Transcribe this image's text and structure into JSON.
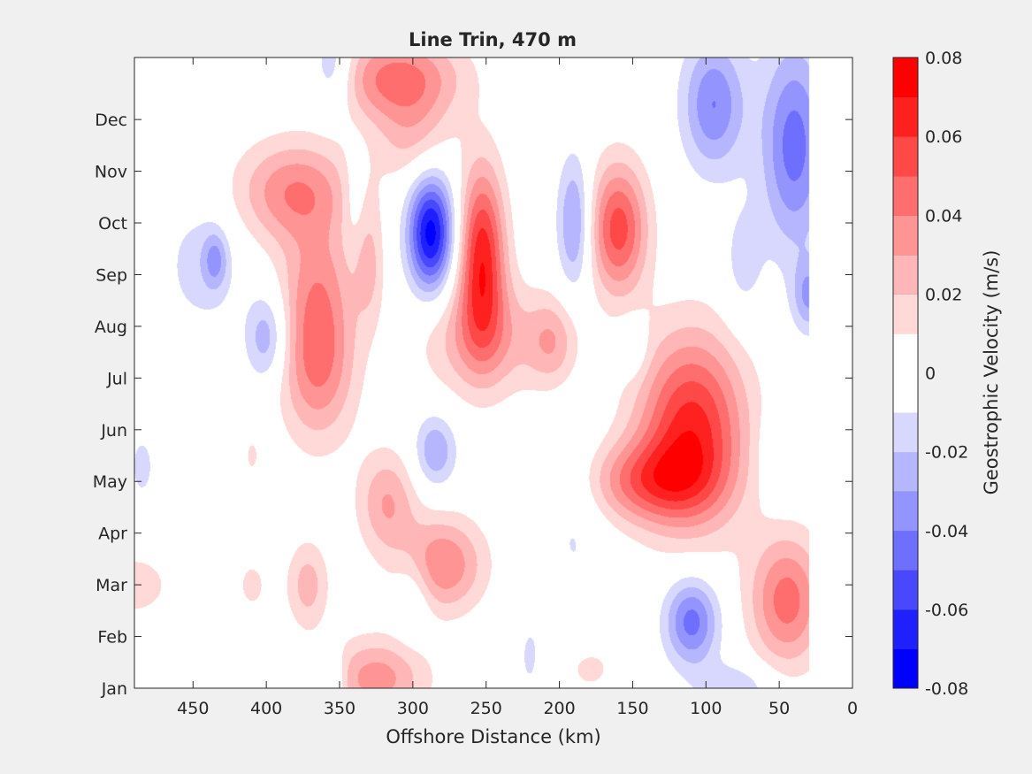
{
  "chart_data": {
    "type": "contour",
    "title": "Line Trin, 470 m",
    "xlabel": "Offshore Distance (km)",
    "ylabel": "",
    "xlim": [
      490,
      0
    ],
    "x_reversed": true,
    "ylim_months": [
      1,
      13.2
    ],
    "x_ticks": [
      450,
      400,
      350,
      300,
      250,
      200,
      150,
      100,
      50,
      0
    ],
    "y_ticks": [
      {
        "value": 1,
        "label": "Jan"
      },
      {
        "value": 2,
        "label": "Feb"
      },
      {
        "value": 3,
        "label": "Mar"
      },
      {
        "value": 4,
        "label": "Apr"
      },
      {
        "value": 5,
        "label": "May"
      },
      {
        "value": 6,
        "label": "Jun"
      },
      {
        "value": 7,
        "label": "Jul"
      },
      {
        "value": 8,
        "label": "Aug"
      },
      {
        "value": 9,
        "label": "Sep"
      },
      {
        "value": 10,
        "label": "Oct"
      },
      {
        "value": 11,
        "label": "Nov"
      },
      {
        "value": 12,
        "label": "Dec"
      }
    ],
    "colorbar": {
      "label": "Geostrophic Velocity (m/s)",
      "range": [
        -0.08,
        0.08
      ],
      "ticks": [
        0.08,
        0.06,
        0.04,
        0.02,
        0,
        -0.02,
        -0.04,
        -0.06,
        -0.08
      ],
      "tick_labels": [
        "0.08",
        "0.06",
        "0.04",
        "0.02",
        "0",
        "-0.02",
        "-0.04",
        "-0.06",
        "-0.08"
      ],
      "levels": [
        -0.08,
        -0.07,
        -0.06,
        -0.05,
        -0.04,
        -0.03,
        -0.02,
        -0.01,
        0,
        0.01,
        0.02,
        0.03,
        0.04,
        0.05,
        0.06,
        0.07,
        0.08
      ],
      "colors": [
        "#0000ff",
        "#2020ff",
        "#4848ff",
        "#6e6eff",
        "#9494ff",
        "#b6b6ff",
        "#d8d8ff",
        "#ffffff",
        "#ffffff",
        "#ffd8d8",
        "#ffb6b6",
        "#ff9494",
        "#ff6e6e",
        "#ff4848",
        "#ff2020",
        "#ff0000"
      ]
    },
    "features": [
      {
        "x": 253,
        "y": 9.4,
        "value": 0.065,
        "sx": 11,
        "sy": 1.2
      },
      {
        "x": 253,
        "y": 7.8,
        "value": 0.03,
        "sx": 28,
        "sy": 0.8
      },
      {
        "x": 288,
        "y": 9.8,
        "value": -0.075,
        "sx": 11,
        "sy": 0.8
      },
      {
        "x": 160,
        "y": 9.9,
        "value": 0.055,
        "sx": 14,
        "sy": 0.9
      },
      {
        "x": 190,
        "y": 10.0,
        "value": -0.035,
        "sx": 8,
        "sy": 0.9
      },
      {
        "x": 110,
        "y": 6.0,
        "value": 0.065,
        "sx": 26,
        "sy": 1.3
      },
      {
        "x": 140,
        "y": 5.0,
        "value": 0.04,
        "sx": 30,
        "sy": 0.55
      },
      {
        "x": 380,
        "y": 10.6,
        "value": 0.04,
        "sx": 28,
        "sy": 0.7
      },
      {
        "x": 365,
        "y": 7.4,
        "value": 0.045,
        "sx": 18,
        "sy": 1.1
      },
      {
        "x": 365,
        "y": 9.0,
        "value": 0.02,
        "sx": 18,
        "sy": 0.8
      },
      {
        "x": 310,
        "y": 12.8,
        "value": 0.045,
        "sx": 30,
        "sy": 0.6
      },
      {
        "x": 300,
        "y": 11.6,
        "value": 0.02,
        "sx": 18,
        "sy": 0.6
      },
      {
        "x": 330,
        "y": 9.2,
        "value": 0.02,
        "sx": 7,
        "sy": 0.8
      },
      {
        "x": 110,
        "y": 2.3,
        "value": -0.045,
        "sx": 13,
        "sy": 0.6
      },
      {
        "x": 45,
        "y": 2.7,
        "value": 0.045,
        "sx": 18,
        "sy": 0.9
      },
      {
        "x": 40,
        "y": 11.5,
        "value": -0.045,
        "sx": 16,
        "sy": 1.4
      },
      {
        "x": 95,
        "y": 12.3,
        "value": -0.04,
        "sx": 15,
        "sy": 0.9
      },
      {
        "x": 30,
        "y": 8.6,
        "value": -0.03,
        "sx": 8,
        "sy": 0.5
      },
      {
        "x": 280,
        "y": 3.4,
        "value": 0.04,
        "sx": 20,
        "sy": 0.65
      },
      {
        "x": 318,
        "y": 4.6,
        "value": 0.03,
        "sx": 14,
        "sy": 0.7
      },
      {
        "x": 372,
        "y": 3.0,
        "value": 0.025,
        "sx": 10,
        "sy": 0.6
      },
      {
        "x": 410,
        "y": 3.0,
        "value": 0.012,
        "sx": 10,
        "sy": 0.5
      },
      {
        "x": 325,
        "y": 1.2,
        "value": 0.035,
        "sx": 24,
        "sy": 0.55
      },
      {
        "x": 355,
        "y": 1.2,
        "value": -0.02,
        "sx": 6,
        "sy": 0.4
      },
      {
        "x": 180,
        "y": 1.4,
        "value": 0.012,
        "sx": 18,
        "sy": 0.5
      },
      {
        "x": 80,
        "y": 1.0,
        "value": -0.02,
        "sx": 18,
        "sy": 0.35
      },
      {
        "x": 300,
        "y": 2.8,
        "value": -0.015,
        "sx": 9,
        "sy": 0.6
      },
      {
        "x": 220,
        "y": 1.6,
        "value": -0.012,
        "sx": 8,
        "sy": 0.7
      },
      {
        "x": 190,
        "y": 4.3,
        "value": -0.012,
        "sx": 14,
        "sy": 1.3
      },
      {
        "x": 285,
        "y": 5.6,
        "value": -0.03,
        "sx": 10,
        "sy": 0.5
      },
      {
        "x": 205,
        "y": 7.7,
        "value": 0.025,
        "sx": 12,
        "sy": 0.6
      },
      {
        "x": 150,
        "y": 7.6,
        "value": -0.015,
        "sx": 7,
        "sy": 0.4
      },
      {
        "x": 445,
        "y": 9.2,
        "value": -0.015,
        "sx": 18,
        "sy": 0.9
      },
      {
        "x": 435,
        "y": 9.3,
        "value": -0.025,
        "sx": 6,
        "sy": 0.4
      },
      {
        "x": 400,
        "y": 7.8,
        "value": -0.03,
        "sx": 10,
        "sy": 0.6
      },
      {
        "x": 485,
        "y": 5.3,
        "value": -0.015,
        "sx": 6,
        "sy": 0.45
      },
      {
        "x": 355,
        "y": 13.0,
        "value": -0.025,
        "sx": 10,
        "sy": 0.6
      },
      {
        "x": 410,
        "y": 5.5,
        "value": 0.012,
        "sx": 4,
        "sy": 0.3
      },
      {
        "x": 490,
        "y": 3.0,
        "value": 0.015,
        "sx": 20,
        "sy": 0.5
      },
      {
        "x": 75,
        "y": 9.2,
        "value": -0.015,
        "sx": 10,
        "sy": 0.8
      },
      {
        "x": 50,
        "y": 5.5,
        "value": -0.012,
        "sx": 10,
        "sy": 0.6
      },
      {
        "x": 340,
        "y": 10.5,
        "value": -0.012,
        "sx": 6,
        "sy": 0.7
      }
    ],
    "grid": false,
    "legend": "colorbar-right"
  }
}
